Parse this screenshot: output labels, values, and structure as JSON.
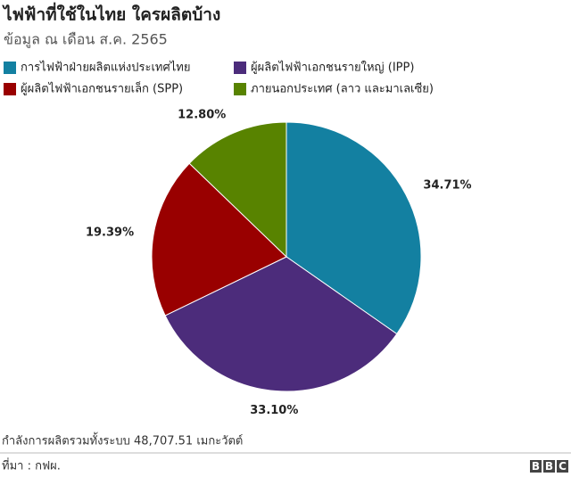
{
  "chart_data": {
    "type": "pie",
    "title": "ไฟฟ้าที่ใช้ในไทย ใครผลิตบ้าง",
    "subtitle": "ข้อมูล ณ เดือน ส.ค. 2565",
    "categories": [
      "การไฟฟ้าฝ่ายผลิตแห่งประเทศไทย",
      "ผู้ผลิตไฟฟ้าเอกชนรายใหญ่ (IPP)",
      "ผู้ผลิตไฟฟ้าเอกชนรายเล็ก (SPP)",
      "ภายนอกประเทศ (ลาว และมาเลเซีย)"
    ],
    "values": [
      34.71,
      33.1,
      19.39,
      12.8
    ],
    "value_labels": [
      "34.71%",
      "33.10%",
      "19.39%",
      "12.80%"
    ],
    "colors": [
      "#1380a1",
      "#4c2c7b",
      "#990000",
      "#588300"
    ],
    "note": "กำลังการผลิตรวมทั้งระบบ 48,707.51 เมกะวัตต์",
    "source": "ที่มา : กฟผ.",
    "logo": [
      "B",
      "B",
      "C"
    ]
  }
}
